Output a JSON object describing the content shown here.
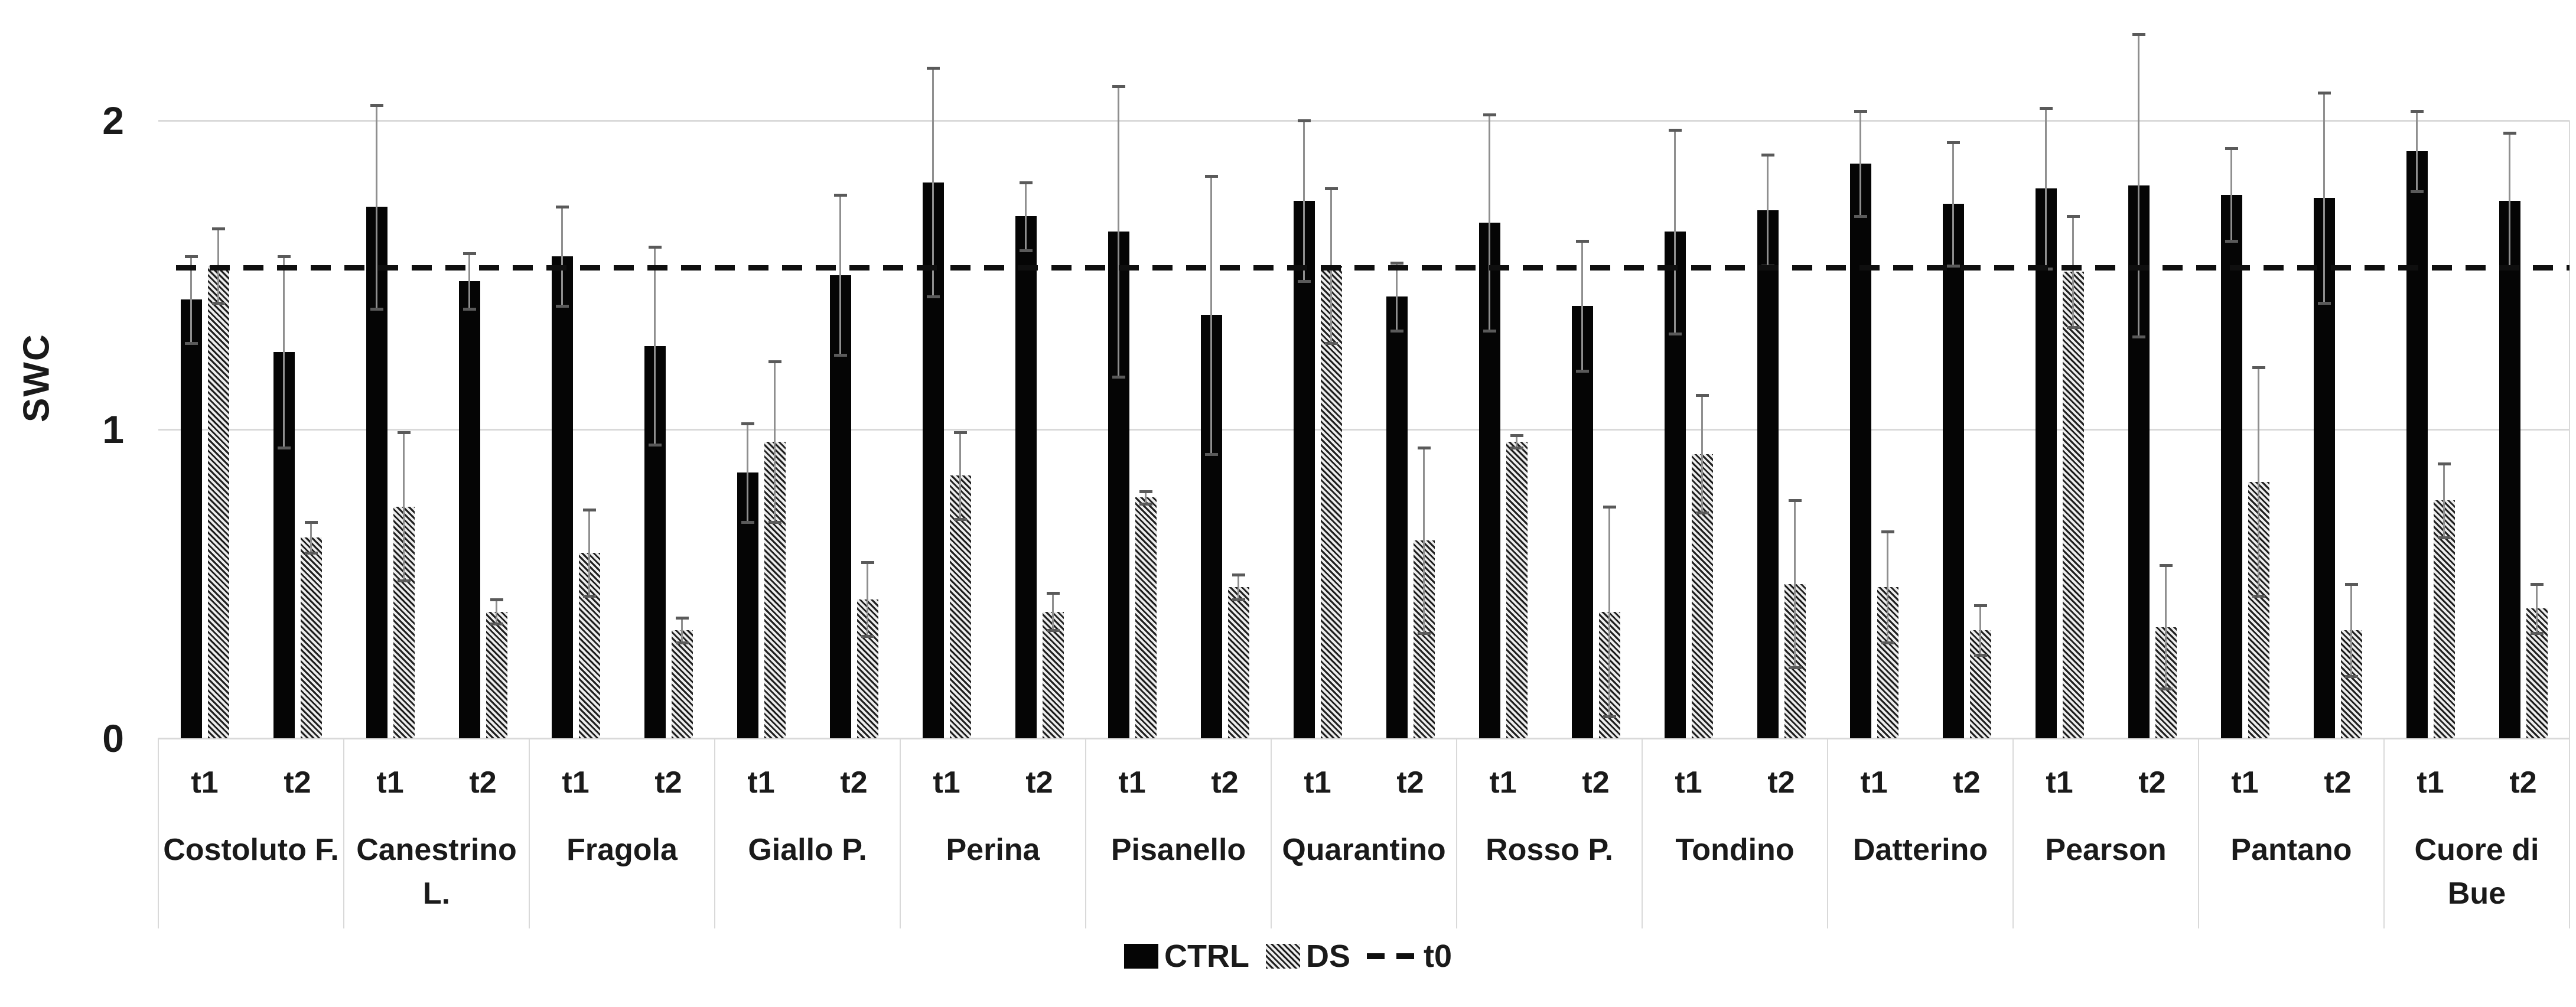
{
  "chart_data": {
    "type": "bar",
    "title": "",
    "xlabel": "",
    "ylabel": "SWC",
    "ylim": [
      0,
      2.4
    ],
    "yticks": [
      0,
      1,
      2
    ],
    "grid": "horizontal",
    "legend_position": "bottom-center",
    "subgroups": [
      "t1",
      "t2"
    ],
    "series_names": [
      "CTRL",
      "DS"
    ],
    "reference_line": {
      "label": "t0",
      "value": 1.52,
      "style": "dashed-black"
    },
    "legend": [
      {
        "label": "CTRL",
        "swatch": "solid-black"
      },
      {
        "label": "DS",
        "swatch": "hatched"
      },
      {
        "label": "t0",
        "swatch": "dashed-line"
      }
    ],
    "error_bars": true,
    "categories": [
      {
        "name": "Costoluto F.",
        "label_lines": [
          "Costoluto F."
        ],
        "t1": {
          "CTRL": {
            "value": 1.42,
            "err": 0.14
          },
          "DS": {
            "value": 1.53,
            "err": 0.12
          }
        },
        "t2": {
          "CTRL": {
            "value": 1.25,
            "err": 0.31
          },
          "DS": {
            "value": 0.65,
            "err": 0.05
          }
        }
      },
      {
        "name": "Canestrino L.",
        "label_lines": [
          "Canestrino",
          "L."
        ],
        "t1": {
          "CTRL": {
            "value": 1.72,
            "err": 0.33
          },
          "DS": {
            "value": 0.75,
            "err": 0.24
          }
        },
        "t2": {
          "CTRL": {
            "value": 1.48,
            "err": 0.09
          },
          "DS": {
            "value": 0.41,
            "err": 0.04
          }
        }
      },
      {
        "name": "Fragola",
        "label_lines": [
          "Fragola"
        ],
        "t1": {
          "CTRL": {
            "value": 1.56,
            "err": 0.16
          },
          "DS": {
            "value": 0.6,
            "err": 0.14
          }
        },
        "t2": {
          "CTRL": {
            "value": 1.27,
            "err": 0.32
          },
          "DS": {
            "value": 0.35,
            "err": 0.04
          }
        }
      },
      {
        "name": "Giallo P.",
        "label_lines": [
          "Giallo P."
        ],
        "t1": {
          "CTRL": {
            "value": 0.86,
            "err": 0.16
          },
          "DS": {
            "value": 0.96,
            "err": 0.26
          }
        },
        "t2": {
          "CTRL": {
            "value": 1.5,
            "err": 0.26
          },
          "DS": {
            "value": 0.45,
            "err": 0.12
          }
        }
      },
      {
        "name": "Perina",
        "label_lines": [
          "Perina"
        ],
        "t1": {
          "CTRL": {
            "value": 1.8,
            "err": 0.37
          },
          "DS": {
            "value": 0.85,
            "err": 0.14
          }
        },
        "t2": {
          "CTRL": {
            "value": 1.69,
            "err": 0.11
          },
          "DS": {
            "value": 0.41,
            "err": 0.06
          }
        }
      },
      {
        "name": "Pisanello",
        "label_lines": [
          "Pisanello"
        ],
        "t1": {
          "CTRL": {
            "value": 1.64,
            "err": 0.47
          },
          "DS": {
            "value": 0.78,
            "err": 0.02
          }
        },
        "t2": {
          "CTRL": {
            "value": 1.37,
            "err": 0.45
          },
          "DS": {
            "value": 0.49,
            "err": 0.04
          }
        }
      },
      {
        "name": "Quarantino",
        "label_lines": [
          "Quarantino"
        ],
        "t1": {
          "CTRL": {
            "value": 1.74,
            "err": 0.26
          },
          "DS": {
            "value": 1.53,
            "err": 0.25
          }
        },
        "t2": {
          "CTRL": {
            "value": 1.43,
            "err": 0.11
          },
          "DS": {
            "value": 0.64,
            "err": 0.3
          }
        }
      },
      {
        "name": "Rosso P.",
        "label_lines": [
          "Rosso P."
        ],
        "t1": {
          "CTRL": {
            "value": 1.67,
            "err": 0.35
          },
          "DS": {
            "value": 0.96,
            "err": 0.02
          }
        },
        "t2": {
          "CTRL": {
            "value": 1.4,
            "err": 0.21
          },
          "DS": {
            "value": 0.41,
            "err": 0.34
          }
        }
      },
      {
        "name": "Tondino",
        "label_lines": [
          "Tondino"
        ],
        "t1": {
          "CTRL": {
            "value": 1.64,
            "err": 0.33
          },
          "DS": {
            "value": 0.92,
            "err": 0.19
          }
        },
        "t2": {
          "CTRL": {
            "value": 1.71,
            "err": 0.18
          },
          "DS": {
            "value": 0.5,
            "err": 0.27
          }
        }
      },
      {
        "name": "Datterino",
        "label_lines": [
          "Datterino"
        ],
        "t1": {
          "CTRL": {
            "value": 1.86,
            "err": 0.17
          },
          "DS": {
            "value": 0.49,
            "err": 0.18
          }
        },
        "t2": {
          "CTRL": {
            "value": 1.73,
            "err": 0.2
          },
          "DS": {
            "value": 0.35,
            "err": 0.08
          }
        }
      },
      {
        "name": "Pearson",
        "label_lines": [
          "Pearson"
        ],
        "t1": {
          "CTRL": {
            "value": 1.78,
            "err": 0.26
          },
          "DS": {
            "value": 1.51,
            "err": 0.18
          }
        },
        "t2": {
          "CTRL": {
            "value": 1.79,
            "err": 0.49
          },
          "DS": {
            "value": 0.36,
            "err": 0.2
          }
        }
      },
      {
        "name": "Pantano",
        "label_lines": [
          "Pantano"
        ],
        "t1": {
          "CTRL": {
            "value": 1.76,
            "err": 0.15
          },
          "DS": {
            "value": 0.83,
            "err": 0.37
          }
        },
        "t2": {
          "CTRL": {
            "value": 1.75,
            "err": 0.34
          },
          "DS": {
            "value": 0.35,
            "err": 0.15
          }
        }
      },
      {
        "name": "Cuore di Bue",
        "label_lines": [
          "Cuore di",
          "Bue"
        ],
        "t1": {
          "CTRL": {
            "value": 1.9,
            "err": 0.13
          },
          "DS": {
            "value": 0.77,
            "err": 0.12
          }
        },
        "t2": {
          "CTRL": {
            "value": 1.74,
            "err": 0.22
          },
          "DS": {
            "value": 0.42,
            "err": 0.08
          }
        }
      }
    ]
  },
  "colors": {
    "bar_ctrl": "#050505",
    "hatch_dark": "#1f1f1f",
    "hatch_light": "#ededed",
    "gridline": "#d9d9d9",
    "error_bar_line": "#8f8f8f",
    "error_bar_cap": "#5a5a5a",
    "reference_line": "#0f0f0f",
    "text": "#1a1a1a",
    "background": "#ffffff"
  }
}
